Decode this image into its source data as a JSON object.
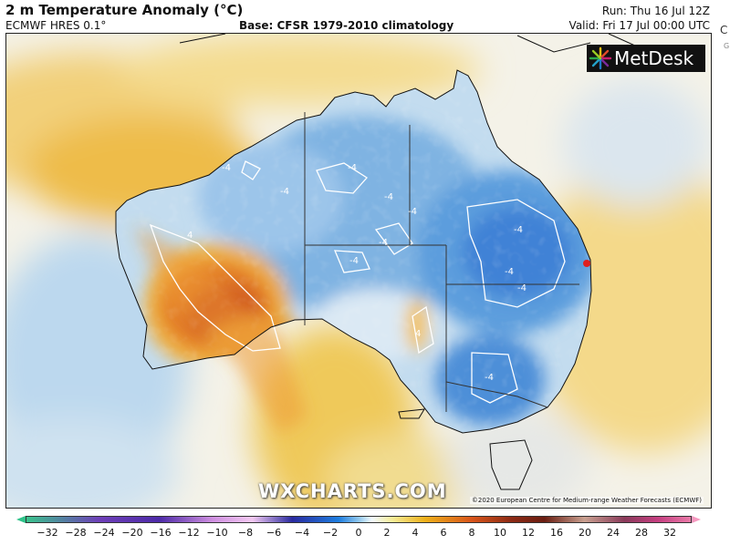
{
  "header": {
    "title": "2 m Temperature Anomaly (°C)",
    "model": "ECMWF HRES 0.1°",
    "base": "Base: CFSR 1979-2010 climatology",
    "run": "Run: Thu 16 Jul 12Z",
    "valid": "Valid: Fri 17 Jul 00:00 UTC"
  },
  "logo": {
    "text": "MetDesk"
  },
  "watermark": "WXCHARTS.COM",
  "credit": "©2020 European Centre for Medium-range Weather Forecasts (ECMWF)",
  "side_clip": {
    "char": "C",
    "small": "G"
  },
  "map": {
    "contour_labels": [
      "-4",
      "-4",
      "-4",
      "-4",
      "-4",
      "-4",
      "-4",
      "-4",
      "-4",
      "-4",
      "-4",
      "4",
      "4"
    ],
    "marker_color": "#e02020"
  },
  "legend": {
    "ticks": [
      "−32",
      "−28",
      "−24",
      "−20",
      "−16",
      "−12",
      "−10",
      "−8",
      "−6",
      "−4",
      "−2",
      "0",
      "2",
      "4",
      "6",
      "8",
      "10",
      "12",
      "16",
      "20",
      "24",
      "28",
      "32"
    ],
    "palette": [
      "#39c38c",
      "#6e3fb8",
      "#cf8fe0",
      "#2a2aa0",
      "#1e7ee0",
      "#8fc7ee",
      "#f3fbff",
      "#f7ee9a",
      "#eeb11a",
      "#d9551a",
      "#8d2a14",
      "#c9a090",
      "#8a3a5a",
      "#ea7aa8"
    ]
  },
  "icons": {
    "logo_mark": "metdesk-logo-icon",
    "location_marker": "location-dot-icon"
  }
}
